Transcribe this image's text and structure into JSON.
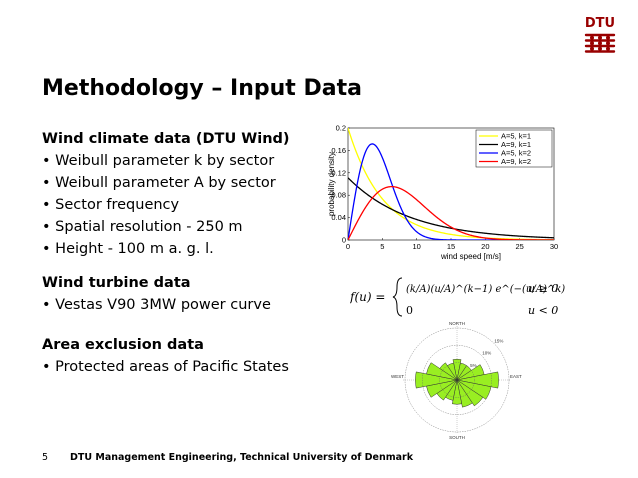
{
  "slide": {
    "logo_text": "DTU",
    "title": "Methodology – Input Data",
    "page_number": "5",
    "footer": "DTU Management Engineering, Technical University of Denmark"
  },
  "sections": [
    {
      "heading": "Wind climate data (DTU Wind)",
      "items": [
        "• Weibull parameter k by sector",
        "• Weibull parameter A by sector",
        "• Sector frequency",
        "• Spatial resolution - 250 m",
        "• Height - 100 m a. g. l."
      ]
    },
    {
      "heading": "Wind turbine data",
      "items": [
        "• Vestas V90 3MW power curve"
      ]
    },
    {
      "heading": "Area exclusion data",
      "items": [
        "• Protected areas of Pacific States"
      ]
    }
  ],
  "formula": {
    "lhs": "f(u) =",
    "case1_expr": "(k/A)(u/A)^(k−1) e^(−(u/A)^k)",
    "case1_cond": "u ≥ 0",
    "case2_expr": "0",
    "case2_cond": "u < 0"
  },
  "chart_data": {
    "type": "line",
    "xlabel": "wind speed [m/s]",
    "ylabel": "probability density",
    "xlim": [
      0,
      30
    ],
    "ylim": [
      0,
      0.2
    ],
    "x_ticks": [
      0,
      5,
      10,
      15,
      20,
      25,
      30
    ],
    "y_ticks": [
      0,
      0.04,
      0.08,
      0.12,
      0.16,
      0.2
    ],
    "y_tick_labels": [
      "0",
      "0.04",
      "0.08",
      "0.12",
      "0.16",
      "0.2"
    ],
    "legend_position": "top-right",
    "series": [
      {
        "name": "A=5, k=1",
        "color": "#ffff00",
        "A": 5,
        "k": 1
      },
      {
        "name": "A=9, k=1",
        "color": "#000000",
        "A": 9,
        "k": 1
      },
      {
        "name": "A=5, k=2",
        "color": "#0000ff",
        "A": 5,
        "k": 2
      },
      {
        "name": "A=9, k=2",
        "color": "#ff0000",
        "A": 9,
        "k": 2
      }
    ]
  },
  "wind_rose": {
    "labels": {
      "north": "NORTH",
      "south": "SOUTH",
      "west": "WEST",
      "east": "EAST"
    },
    "rings": [
      "5%",
      "10%",
      "15%"
    ],
    "fill_color": "#99ee22",
    "sector_frequencies_pct": [
      6,
      5,
      5,
      8,
      12,
      10,
      9,
      8,
      7,
      6,
      7,
      9,
      12,
      9,
      6,
      5
    ]
  }
}
